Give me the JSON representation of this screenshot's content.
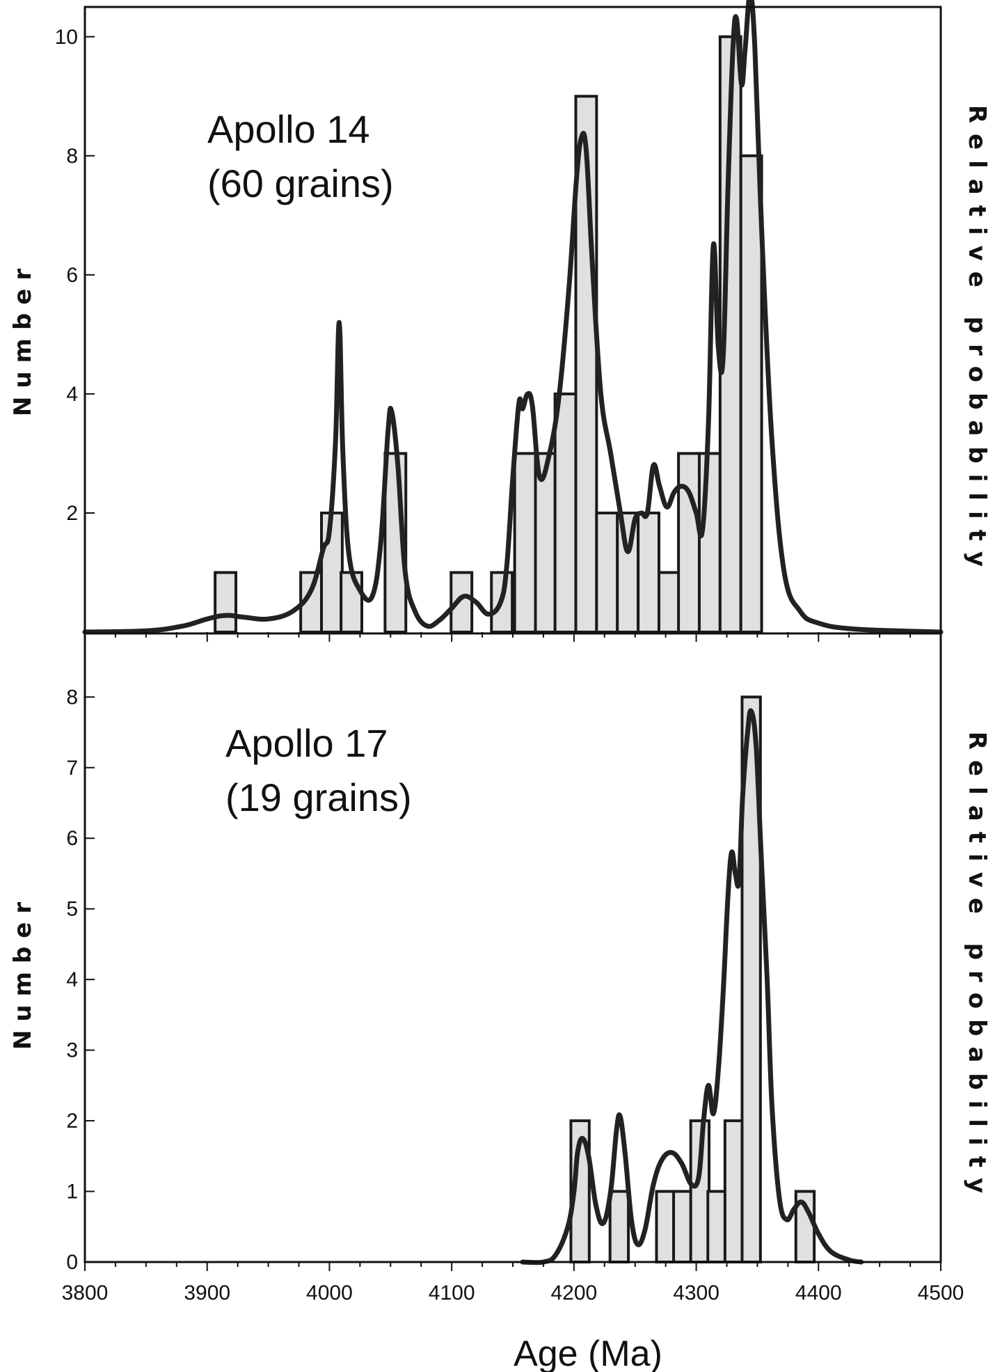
{
  "chart_data": [
    {
      "type": "bar",
      "panel": "top",
      "annotation_line1": "Apollo 14",
      "annotation_line2": "(60 grains)",
      "ylabel": "Number",
      "y2label": "Relative probability",
      "xlim": [
        3800,
        4500
      ],
      "ylim": [
        0,
        10.5
      ],
      "yticks": [
        2,
        4,
        6,
        8,
        10
      ],
      "bar_width": 17,
      "bars": [
        {
          "x": 3915,
          "value": 1
        },
        {
          "x": 3985,
          "value": 1
        },
        {
          "x": 4002,
          "value": 2
        },
        {
          "x": 4018,
          "value": 1
        },
        {
          "x": 4054,
          "value": 3
        },
        {
          "x": 4108,
          "value": 1
        },
        {
          "x": 4141,
          "value": 1
        },
        {
          "x": 4160,
          "value": 3
        },
        {
          "x": 4177,
          "value": 3
        },
        {
          "x": 4193,
          "value": 4
        },
        {
          "x": 4210,
          "value": 9
        },
        {
          "x": 4227,
          "value": 2
        },
        {
          "x": 4244,
          "value": 2
        },
        {
          "x": 4261,
          "value": 2
        },
        {
          "x": 4278,
          "value": 1
        },
        {
          "x": 4294,
          "value": 3
        },
        {
          "x": 4311,
          "value": 3
        },
        {
          "x": 4328,
          "value": 10
        },
        {
          "x": 4345,
          "value": 8
        }
      ],
      "probability_curve": [
        [
          3800,
          0.0
        ],
        [
          3850,
          0.02
        ],
        [
          3880,
          0.1
        ],
        [
          3900,
          0.22
        ],
        [
          3915,
          0.28
        ],
        [
          3930,
          0.25
        ],
        [
          3950,
          0.22
        ],
        [
          3970,
          0.35
        ],
        [
          3985,
          0.7
        ],
        [
          3995,
          1.4
        ],
        [
          4000,
          1.7
        ],
        [
          4005,
          3.2
        ],
        [
          4008,
          5.2
        ],
        [
          4011,
          3.0
        ],
        [
          4016,
          1.3
        ],
        [
          4025,
          0.7
        ],
        [
          4035,
          0.6
        ],
        [
          4042,
          1.5
        ],
        [
          4048,
          3.4
        ],
        [
          4051,
          3.7
        ],
        [
          4056,
          2.8
        ],
        [
          4062,
          1.0
        ],
        [
          4070,
          0.35
        ],
        [
          4080,
          0.1
        ],
        [
          4090,
          0.2
        ],
        [
          4100,
          0.4
        ],
        [
          4110,
          0.6
        ],
        [
          4120,
          0.5
        ],
        [
          4130,
          0.3
        ],
        [
          4140,
          0.5
        ],
        [
          4145,
          1.1
        ],
        [
          4150,
          2.6
        ],
        [
          4155,
          3.85
        ],
        [
          4158,
          3.75
        ],
        [
          4162,
          4.0
        ],
        [
          4166,
          3.8
        ],
        [
          4172,
          2.6
        ],
        [
          4180,
          3.0
        ],
        [
          4188,
          4.0
        ],
        [
          4196,
          5.8
        ],
        [
          4202,
          7.6
        ],
        [
          4206,
          8.3
        ],
        [
          4210,
          8.1
        ],
        [
          4215,
          6.2
        ],
        [
          4222,
          4.0
        ],
        [
          4230,
          3.0
        ],
        [
          4238,
          2.0
        ],
        [
          4244,
          1.35
        ],
        [
          4250,
          1.9
        ],
        [
          4255,
          2.0
        ],
        [
          4260,
          2.0
        ],
        [
          4265,
          2.8
        ],
        [
          4270,
          2.45
        ],
        [
          4276,
          2.1
        ],
        [
          4282,
          2.35
        ],
        [
          4288,
          2.45
        ],
        [
          4294,
          2.35
        ],
        [
          4300,
          2.0
        ],
        [
          4305,
          1.7
        ],
        [
          4310,
          3.5
        ],
        [
          4314,
          6.5
        ],
        [
          4318,
          4.8
        ],
        [
          4322,
          4.6
        ],
        [
          4326,
          7.5
        ],
        [
          4330,
          9.8
        ],
        [
          4333,
          10.3
        ],
        [
          4337,
          9.2
        ],
        [
          4340,
          9.8
        ],
        [
          4344,
          10.7
        ],
        [
          4348,
          9.8
        ],
        [
          4354,
          6.5
        ],
        [
          4362,
          3.2
        ],
        [
          4372,
          1.0
        ],
        [
          4385,
          0.35
        ],
        [
          4400,
          0.15
        ],
        [
          4430,
          0.05
        ],
        [
          4500,
          0.0
        ]
      ]
    },
    {
      "type": "bar",
      "panel": "bottom",
      "annotation_line1": "Apollo 17",
      "annotation_line2": "(19 grains)",
      "ylabel": "Number",
      "y2label": "Relative probability",
      "xlabel": "Age (Ma)",
      "xlim": [
        3800,
        4500
      ],
      "ylim": [
        0,
        8.9
      ],
      "yticks": [
        0,
        1,
        2,
        3,
        4,
        5,
        6,
        7,
        8
      ],
      "xticks": [
        3800,
        3900,
        4000,
        4100,
        4200,
        4300,
        4400,
        4500
      ],
      "bar_width": 15,
      "bars": [
        {
          "x": 4205,
          "value": 2
        },
        {
          "x": 4237,
          "value": 1
        },
        {
          "x": 4275,
          "value": 1
        },
        {
          "x": 4289,
          "value": 1
        },
        {
          "x": 4303,
          "value": 2
        },
        {
          "x": 4317,
          "value": 1
        },
        {
          "x": 4331,
          "value": 2
        },
        {
          "x": 4345,
          "value": 8
        },
        {
          "x": 4389,
          "value": 1
        }
      ],
      "probability_curve": [
        [
          4158,
          0.0
        ],
        [
          4175,
          0.0
        ],
        [
          4185,
          0.1
        ],
        [
          4195,
          0.5
        ],
        [
          4200,
          1.0
        ],
        [
          4203,
          1.55
        ],
        [
          4207,
          1.75
        ],
        [
          4212,
          1.5
        ],
        [
          4218,
          0.8
        ],
        [
          4224,
          0.55
        ],
        [
          4230,
          1.0
        ],
        [
          4235,
          1.9
        ],
        [
          4238,
          2.05
        ],
        [
          4242,
          1.5
        ],
        [
          4247,
          0.6
        ],
        [
          4252,
          0.25
        ],
        [
          4258,
          0.45
        ],
        [
          4265,
          1.1
        ],
        [
          4272,
          1.45
        ],
        [
          4280,
          1.55
        ],
        [
          4288,
          1.4
        ],
        [
          4296,
          1.1
        ],
        [
          4302,
          1.2
        ],
        [
          4306,
          2.0
        ],
        [
          4310,
          2.5
        ],
        [
          4314,
          2.1
        ],
        [
          4318,
          2.7
        ],
        [
          4322,
          3.8
        ],
        [
          4326,
          5.2
        ],
        [
          4329,
          5.8
        ],
        [
          4332,
          5.5
        ],
        [
          4335,
          5.4
        ],
        [
          4338,
          6.6
        ],
        [
          4342,
          7.5
        ],
        [
          4345,
          7.8
        ],
        [
          4349,
          7.3
        ],
        [
          4353,
          5.8
        ],
        [
          4358,
          4.0
        ],
        [
          4362,
          2.2
        ],
        [
          4368,
          0.9
        ],
        [
          4374,
          0.6
        ],
        [
          4380,
          0.75
        ],
        [
          4386,
          0.85
        ],
        [
          4392,
          0.7
        ],
        [
          4400,
          0.4
        ],
        [
          4410,
          0.15
        ],
        [
          4425,
          0.03
        ],
        [
          4435,
          0.0
        ]
      ]
    }
  ]
}
